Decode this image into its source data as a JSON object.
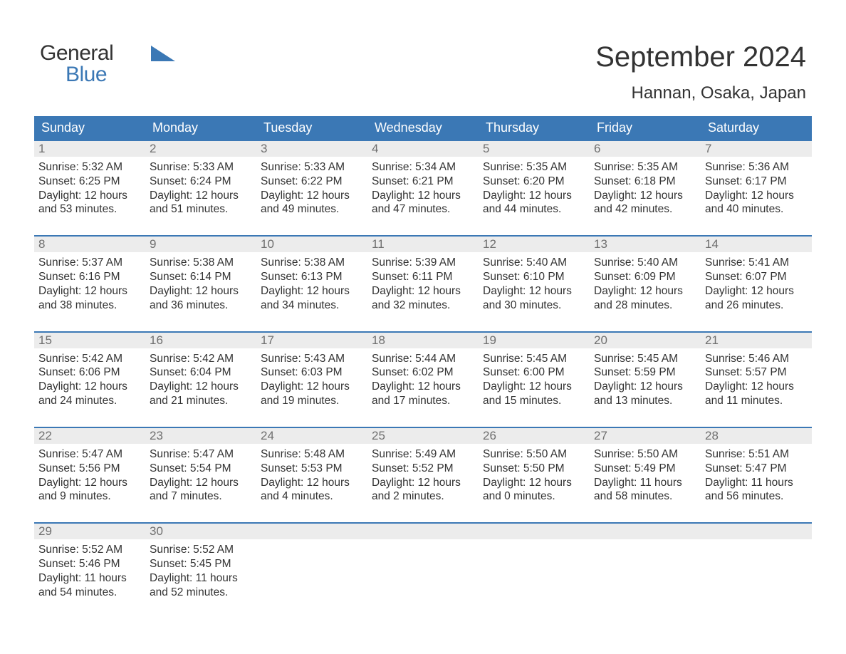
{
  "brand": {
    "text1": "General",
    "text2": "Blue",
    "color_text2": "#3b78b5",
    "triangle_color": "#3b78b5"
  },
  "title": "September 2024",
  "location": "Hannan, Osaka, Japan",
  "colors": {
    "header_bg": "#3b78b5",
    "header_text": "#ffffff",
    "daynum_bg": "#ececec",
    "daynum_text": "#6f6f6f",
    "body_text": "#333333",
    "week_border": "#3b78b5",
    "page_bg": "#ffffff"
  },
  "typography": {
    "month_title_fontsize": 40,
    "location_fontsize": 24,
    "dow_fontsize": 18,
    "daynum_fontsize": 17,
    "daybody_fontsize": 15.5,
    "logo_fontsize": 30,
    "font_family": "Arial"
  },
  "days_of_week": [
    "Sunday",
    "Monday",
    "Tuesday",
    "Wednesday",
    "Thursday",
    "Friday",
    "Saturday"
  ],
  "weeks": [
    [
      {
        "day": "1",
        "sunrise": "Sunrise: 5:32 AM",
        "sunset": "Sunset: 6:25 PM",
        "daylight": "Daylight: 12 hours and 53 minutes."
      },
      {
        "day": "2",
        "sunrise": "Sunrise: 5:33 AM",
        "sunset": "Sunset: 6:24 PM",
        "daylight": "Daylight: 12 hours and 51 minutes."
      },
      {
        "day": "3",
        "sunrise": "Sunrise: 5:33 AM",
        "sunset": "Sunset: 6:22 PM",
        "daylight": "Daylight: 12 hours and 49 minutes."
      },
      {
        "day": "4",
        "sunrise": "Sunrise: 5:34 AM",
        "sunset": "Sunset: 6:21 PM",
        "daylight": "Daylight: 12 hours and 47 minutes."
      },
      {
        "day": "5",
        "sunrise": "Sunrise: 5:35 AM",
        "sunset": "Sunset: 6:20 PM",
        "daylight": "Daylight: 12 hours and 44 minutes."
      },
      {
        "day": "6",
        "sunrise": "Sunrise: 5:35 AM",
        "sunset": "Sunset: 6:18 PM",
        "daylight": "Daylight: 12 hours and 42 minutes."
      },
      {
        "day": "7",
        "sunrise": "Sunrise: 5:36 AM",
        "sunset": "Sunset: 6:17 PM",
        "daylight": "Daylight: 12 hours and 40 minutes."
      }
    ],
    [
      {
        "day": "8",
        "sunrise": "Sunrise: 5:37 AM",
        "sunset": "Sunset: 6:16 PM",
        "daylight": "Daylight: 12 hours and 38 minutes."
      },
      {
        "day": "9",
        "sunrise": "Sunrise: 5:38 AM",
        "sunset": "Sunset: 6:14 PM",
        "daylight": "Daylight: 12 hours and 36 minutes."
      },
      {
        "day": "10",
        "sunrise": "Sunrise: 5:38 AM",
        "sunset": "Sunset: 6:13 PM",
        "daylight": "Daylight: 12 hours and 34 minutes."
      },
      {
        "day": "11",
        "sunrise": "Sunrise: 5:39 AM",
        "sunset": "Sunset: 6:11 PM",
        "daylight": "Daylight: 12 hours and 32 minutes."
      },
      {
        "day": "12",
        "sunrise": "Sunrise: 5:40 AM",
        "sunset": "Sunset: 6:10 PM",
        "daylight": "Daylight: 12 hours and 30 minutes."
      },
      {
        "day": "13",
        "sunrise": "Sunrise: 5:40 AM",
        "sunset": "Sunset: 6:09 PM",
        "daylight": "Daylight: 12 hours and 28 minutes."
      },
      {
        "day": "14",
        "sunrise": "Sunrise: 5:41 AM",
        "sunset": "Sunset: 6:07 PM",
        "daylight": "Daylight: 12 hours and 26 minutes."
      }
    ],
    [
      {
        "day": "15",
        "sunrise": "Sunrise: 5:42 AM",
        "sunset": "Sunset: 6:06 PM",
        "daylight": "Daylight: 12 hours and 24 minutes."
      },
      {
        "day": "16",
        "sunrise": "Sunrise: 5:42 AM",
        "sunset": "Sunset: 6:04 PM",
        "daylight": "Daylight: 12 hours and 21 minutes."
      },
      {
        "day": "17",
        "sunrise": "Sunrise: 5:43 AM",
        "sunset": "Sunset: 6:03 PM",
        "daylight": "Daylight: 12 hours and 19 minutes."
      },
      {
        "day": "18",
        "sunrise": "Sunrise: 5:44 AM",
        "sunset": "Sunset: 6:02 PM",
        "daylight": "Daylight: 12 hours and 17 minutes."
      },
      {
        "day": "19",
        "sunrise": "Sunrise: 5:45 AM",
        "sunset": "Sunset: 6:00 PM",
        "daylight": "Daylight: 12 hours and 15 minutes."
      },
      {
        "day": "20",
        "sunrise": "Sunrise: 5:45 AM",
        "sunset": "Sunset: 5:59 PM",
        "daylight": "Daylight: 12 hours and 13 minutes."
      },
      {
        "day": "21",
        "sunrise": "Sunrise: 5:46 AM",
        "sunset": "Sunset: 5:57 PM",
        "daylight": "Daylight: 12 hours and 11 minutes."
      }
    ],
    [
      {
        "day": "22",
        "sunrise": "Sunrise: 5:47 AM",
        "sunset": "Sunset: 5:56 PM",
        "daylight": "Daylight: 12 hours and 9 minutes."
      },
      {
        "day": "23",
        "sunrise": "Sunrise: 5:47 AM",
        "sunset": "Sunset: 5:54 PM",
        "daylight": "Daylight: 12 hours and 7 minutes."
      },
      {
        "day": "24",
        "sunrise": "Sunrise: 5:48 AM",
        "sunset": "Sunset: 5:53 PM",
        "daylight": "Daylight: 12 hours and 4 minutes."
      },
      {
        "day": "25",
        "sunrise": "Sunrise: 5:49 AM",
        "sunset": "Sunset: 5:52 PM",
        "daylight": "Daylight: 12 hours and 2 minutes."
      },
      {
        "day": "26",
        "sunrise": "Sunrise: 5:50 AM",
        "sunset": "Sunset: 5:50 PM",
        "daylight": "Daylight: 12 hours and 0 minutes."
      },
      {
        "day": "27",
        "sunrise": "Sunrise: 5:50 AM",
        "sunset": "Sunset: 5:49 PM",
        "daylight": "Daylight: 11 hours and 58 minutes."
      },
      {
        "day": "28",
        "sunrise": "Sunrise: 5:51 AM",
        "sunset": "Sunset: 5:47 PM",
        "daylight": "Daylight: 11 hours and 56 minutes."
      }
    ],
    [
      {
        "day": "29",
        "sunrise": "Sunrise: 5:52 AM",
        "sunset": "Sunset: 5:46 PM",
        "daylight": "Daylight: 11 hours and 54 minutes."
      },
      {
        "day": "30",
        "sunrise": "Sunrise: 5:52 AM",
        "sunset": "Sunset: 5:45 PM",
        "daylight": "Daylight: 11 hours and 52 minutes."
      },
      {
        "blank": true
      },
      {
        "blank": true
      },
      {
        "blank": true
      },
      {
        "blank": true
      },
      {
        "blank": true
      }
    ]
  ]
}
